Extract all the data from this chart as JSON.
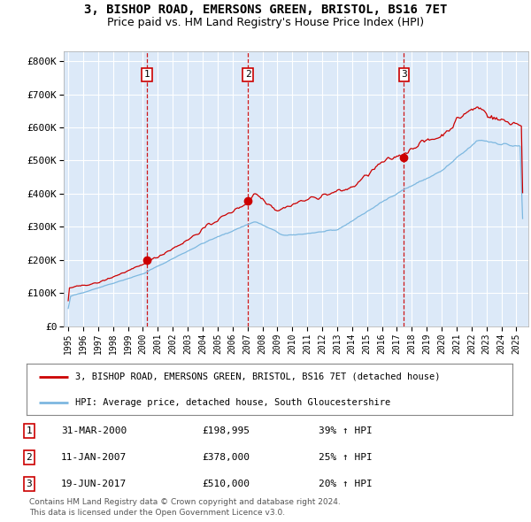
{
  "title_line1": "3, BISHOP ROAD, EMERSONS GREEN, BRISTOL, BS16 7ET",
  "title_line2": "Price paid vs. HM Land Registry's House Price Index (HPI)",
  "title_fontsize": 10,
  "subtitle_fontsize": 9,
  "ylabel_ticks": [
    "£0",
    "£100K",
    "£200K",
    "£300K",
    "£400K",
    "£500K",
    "£600K",
    "£700K",
    "£800K"
  ],
  "ytick_values": [
    0,
    100000,
    200000,
    300000,
    400000,
    500000,
    600000,
    700000,
    800000
  ],
  "ylim": [
    0,
    830000
  ],
  "xlim_start": 1994.7,
  "xlim_end": 2025.8,
  "background_color": "#dce9f8",
  "grid_color": "#ffffff",
  "red_line_color": "#cc0000",
  "blue_line_color": "#7db8e0",
  "sale_marker_color": "#cc0000",
  "vline_color": "#cc0000",
  "sale1_x": 2000.25,
  "sale1_y": 198995,
  "sale2_x": 2007.03,
  "sale2_y": 378000,
  "sale3_x": 2017.47,
  "sale3_y": 510000,
  "legend_red_label": "3, BISHOP ROAD, EMERSONS GREEN, BRISTOL, BS16 7ET (detached house)",
  "legend_blue_label": "HPI: Average price, detached house, South Gloucestershire",
  "table_rows": [
    {
      "num": "1",
      "date": "31-MAR-2000",
      "price": "£198,995",
      "hpi": "39% ↑ HPI"
    },
    {
      "num": "2",
      "date": "11-JAN-2007",
      "price": "£378,000",
      "hpi": "25% ↑ HPI"
    },
    {
      "num": "3",
      "date": "19-JUN-2017",
      "price": "£510,000",
      "hpi": "20% ↑ HPI"
    }
  ],
  "footer_line1": "Contains HM Land Registry data © Crown copyright and database right 2024.",
  "footer_line2": "This data is licensed under the Open Government Licence v3.0."
}
